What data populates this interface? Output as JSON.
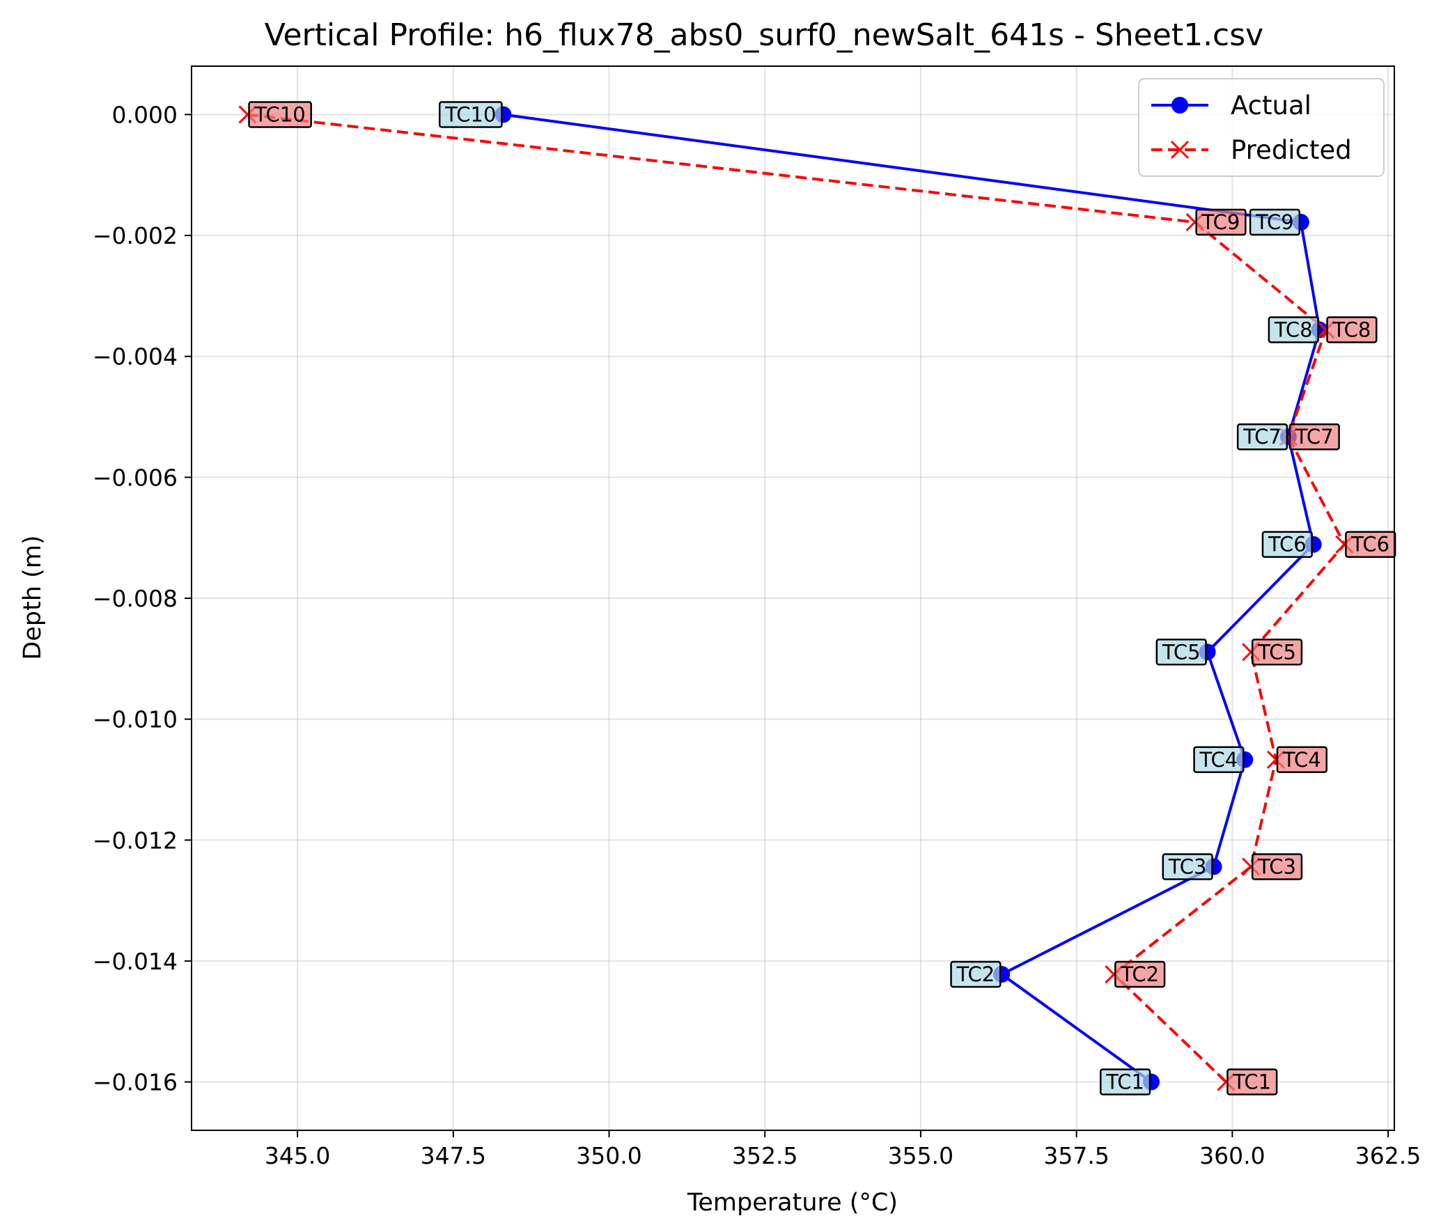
{
  "chart_data": {
    "type": "line",
    "title": "Vertical Profile: h6_flux78_abs0_surf0_newSalt_641s - Sheet1.csv",
    "xlabel": "Temperature (°C)",
    "ylabel": "Depth (m)",
    "xlim": [
      343.3,
      362.6
    ],
    "ylim": [
      -0.0168,
      0.0008
    ],
    "xticks": [
      345.0,
      347.5,
      350.0,
      352.5,
      355.0,
      357.5,
      360.0,
      362.5
    ],
    "xtick_labels": [
      "345.0",
      "347.5",
      "350.0",
      "352.5",
      "355.0",
      "357.5",
      "360.0",
      "362.5"
    ],
    "yticks": [
      0.0,
      -0.002,
      -0.004,
      -0.006,
      -0.008,
      -0.01,
      -0.012,
      -0.014,
      -0.016
    ],
    "ytick_labels": [
      "0.000",
      "−0.002",
      "−0.004",
      "−0.006",
      "−0.008",
      "−0.010",
      "−0.012",
      "−0.014",
      "−0.016"
    ],
    "grid": true,
    "legend_position": "top-right",
    "series": [
      {
        "name": "Actual",
        "color": "#0000ff",
        "line_style": "solid",
        "marker": "circle",
        "label_bg": "#add8e6",
        "points": [
          {
            "label": "TC1",
            "x": 358.7,
            "y": -0.016
          },
          {
            "label": "TC2",
            "x": 356.3,
            "y": -0.01422
          },
          {
            "label": "TC3",
            "x": 359.7,
            "y": -0.01244
          },
          {
            "label": "TC4",
            "x": 360.2,
            "y": -0.01067
          },
          {
            "label": "TC5",
            "x": 359.6,
            "y": -0.00889
          },
          {
            "label": "TC6",
            "x": 361.3,
            "y": -0.00711
          },
          {
            "label": "TC7",
            "x": 360.9,
            "y": -0.00533
          },
          {
            "label": "TC8",
            "x": 361.4,
            "y": -0.00356
          },
          {
            "label": "TC9",
            "x": 361.1,
            "y": -0.00178
          },
          {
            "label": "TC10",
            "x": 348.3,
            "y": 0.0
          }
        ]
      },
      {
        "name": "Predicted",
        "color": "#ff0000",
        "line_style": "dashed",
        "marker": "x",
        "label_bg": "#f08080",
        "points": [
          {
            "label": "TC1",
            "x": 359.9,
            "y": -0.016
          },
          {
            "label": "TC2",
            "x": 358.1,
            "y": -0.01422
          },
          {
            "label": "TC3",
            "x": 360.3,
            "y": -0.01244
          },
          {
            "label": "TC4",
            "x": 360.7,
            "y": -0.01067
          },
          {
            "label": "TC5",
            "x": 360.3,
            "y": -0.00889
          },
          {
            "label": "TC6",
            "x": 361.8,
            "y": -0.00711
          },
          {
            "label": "TC7",
            "x": 360.9,
            "y": -0.00533
          },
          {
            "label": "TC8",
            "x": 361.5,
            "y": -0.00356
          },
          {
            "label": "TC9",
            "x": 359.4,
            "y": -0.00178
          },
          {
            "label": "TC10",
            "x": 344.2,
            "y": 0.0
          }
        ]
      }
    ]
  }
}
